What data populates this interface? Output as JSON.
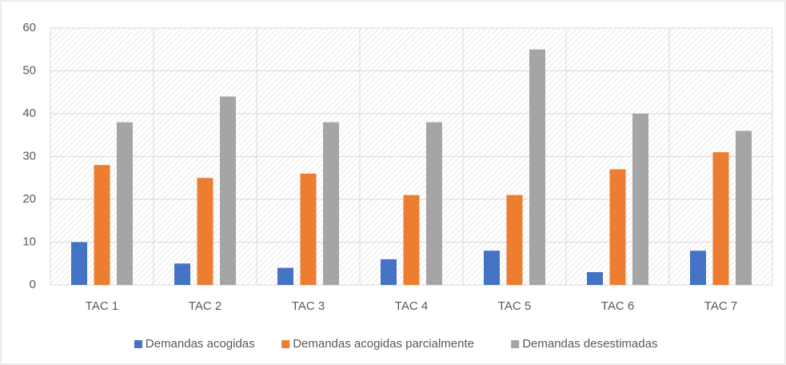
{
  "chart_data": {
    "type": "bar",
    "categories": [
      "TAC 1",
      "TAC 2",
      "TAC 3",
      "TAC 4",
      "TAC 5",
      "TAC 6",
      "TAC 7"
    ],
    "series": [
      {
        "name": "Demandas acogidas",
        "color": "#4472c4",
        "values": [
          10,
          5,
          4,
          6,
          8,
          3,
          8
        ]
      },
      {
        "name": "Demandas acogidas parcialmente",
        "color": "#ed7d31",
        "values": [
          28,
          25,
          26,
          21,
          21,
          27,
          31
        ]
      },
      {
        "name": "Demandas desestimadas",
        "color": "#a5a5a5",
        "values": [
          38,
          44,
          38,
          38,
          55,
          40,
          36
        ]
      }
    ],
    "ylim": [
      0,
      60
    ],
    "yticks": [
      0,
      10,
      20,
      30,
      40,
      50,
      60
    ],
    "grid": true,
    "legend": "bottom"
  }
}
